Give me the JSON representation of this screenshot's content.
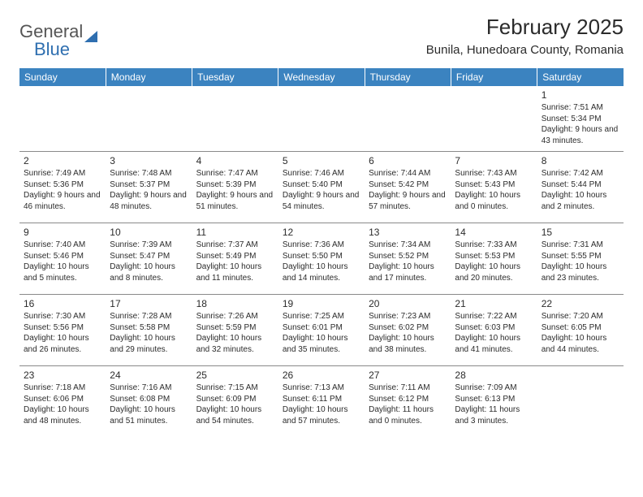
{
  "brand": {
    "word1": "General",
    "word2": "Blue"
  },
  "title": "February 2025",
  "location": "Bunila, Hunedoara County, Romania",
  "colors": {
    "header_bg": "#3b83c0",
    "header_fg": "#ffffff",
    "text": "#2b2b2b",
    "rule": "#8a8a8a",
    "brand_blue": "#2f6fb0"
  },
  "weekday_labels": [
    "Sunday",
    "Monday",
    "Tuesday",
    "Wednesday",
    "Thursday",
    "Friday",
    "Saturday"
  ],
  "weeks": [
    [
      null,
      null,
      null,
      null,
      null,
      null,
      {
        "d": "1",
        "sr": "7:51 AM",
        "ss": "5:34 PM",
        "dl": "9 hours and 43 minutes."
      }
    ],
    [
      {
        "d": "2",
        "sr": "7:49 AM",
        "ss": "5:36 PM",
        "dl": "9 hours and 46 minutes."
      },
      {
        "d": "3",
        "sr": "7:48 AM",
        "ss": "5:37 PM",
        "dl": "9 hours and 48 minutes."
      },
      {
        "d": "4",
        "sr": "7:47 AM",
        "ss": "5:39 PM",
        "dl": "9 hours and 51 minutes."
      },
      {
        "d": "5",
        "sr": "7:46 AM",
        "ss": "5:40 PM",
        "dl": "9 hours and 54 minutes."
      },
      {
        "d": "6",
        "sr": "7:44 AM",
        "ss": "5:42 PM",
        "dl": "9 hours and 57 minutes."
      },
      {
        "d": "7",
        "sr": "7:43 AM",
        "ss": "5:43 PM",
        "dl": "10 hours and 0 minutes."
      },
      {
        "d": "8",
        "sr": "7:42 AM",
        "ss": "5:44 PM",
        "dl": "10 hours and 2 minutes."
      }
    ],
    [
      {
        "d": "9",
        "sr": "7:40 AM",
        "ss": "5:46 PM",
        "dl": "10 hours and 5 minutes."
      },
      {
        "d": "10",
        "sr": "7:39 AM",
        "ss": "5:47 PM",
        "dl": "10 hours and 8 minutes."
      },
      {
        "d": "11",
        "sr": "7:37 AM",
        "ss": "5:49 PM",
        "dl": "10 hours and 11 minutes."
      },
      {
        "d": "12",
        "sr": "7:36 AM",
        "ss": "5:50 PM",
        "dl": "10 hours and 14 minutes."
      },
      {
        "d": "13",
        "sr": "7:34 AM",
        "ss": "5:52 PM",
        "dl": "10 hours and 17 minutes."
      },
      {
        "d": "14",
        "sr": "7:33 AM",
        "ss": "5:53 PM",
        "dl": "10 hours and 20 minutes."
      },
      {
        "d": "15",
        "sr": "7:31 AM",
        "ss": "5:55 PM",
        "dl": "10 hours and 23 minutes."
      }
    ],
    [
      {
        "d": "16",
        "sr": "7:30 AM",
        "ss": "5:56 PM",
        "dl": "10 hours and 26 minutes."
      },
      {
        "d": "17",
        "sr": "7:28 AM",
        "ss": "5:58 PM",
        "dl": "10 hours and 29 minutes."
      },
      {
        "d": "18",
        "sr": "7:26 AM",
        "ss": "5:59 PM",
        "dl": "10 hours and 32 minutes."
      },
      {
        "d": "19",
        "sr": "7:25 AM",
        "ss": "6:01 PM",
        "dl": "10 hours and 35 minutes."
      },
      {
        "d": "20",
        "sr": "7:23 AM",
        "ss": "6:02 PM",
        "dl": "10 hours and 38 minutes."
      },
      {
        "d": "21",
        "sr": "7:22 AM",
        "ss": "6:03 PM",
        "dl": "10 hours and 41 minutes."
      },
      {
        "d": "22",
        "sr": "7:20 AM",
        "ss": "6:05 PM",
        "dl": "10 hours and 44 minutes."
      }
    ],
    [
      {
        "d": "23",
        "sr": "7:18 AM",
        "ss": "6:06 PM",
        "dl": "10 hours and 48 minutes."
      },
      {
        "d": "24",
        "sr": "7:16 AM",
        "ss": "6:08 PM",
        "dl": "10 hours and 51 minutes."
      },
      {
        "d": "25",
        "sr": "7:15 AM",
        "ss": "6:09 PM",
        "dl": "10 hours and 54 minutes."
      },
      {
        "d": "26",
        "sr": "7:13 AM",
        "ss": "6:11 PM",
        "dl": "10 hours and 57 minutes."
      },
      {
        "d": "27",
        "sr": "7:11 AM",
        "ss": "6:12 PM",
        "dl": "11 hours and 0 minutes."
      },
      {
        "d": "28",
        "sr": "7:09 AM",
        "ss": "6:13 PM",
        "dl": "11 hours and 3 minutes."
      },
      null
    ]
  ],
  "labels": {
    "sunrise": "Sunrise:",
    "sunset": "Sunset:",
    "daylight": "Daylight:"
  }
}
